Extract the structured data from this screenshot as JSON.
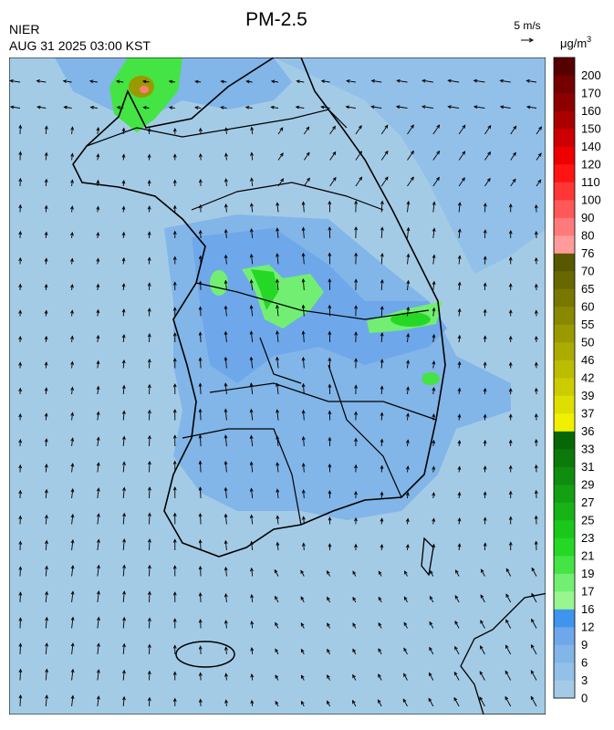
{
  "header": {
    "title": "PM-2.5",
    "source": "NIER",
    "datetime": "AUG 31 2025 03:00 KST",
    "wind_scale": "5 m/s",
    "unit": {
      "base": "μg/m",
      "sup": "3"
    }
  },
  "colorbar": {
    "labels": [
      0,
      3,
      6,
      9,
      12,
      16,
      17,
      19,
      21,
      23,
      25,
      27,
      29,
      31,
      33,
      36,
      37,
      39,
      42,
      46,
      50,
      55,
      60,
      65,
      70,
      76,
      80,
      90,
      100,
      110,
      120,
      140,
      150,
      160,
      170,
      200
    ],
    "colors": [
      "#a4cbe6",
      "#93c0e8",
      "#82b5e8",
      "#6ea8ea",
      "#3f95ee",
      "#98f590",
      "#72ef72",
      "#44e444",
      "#25d825",
      "#1cc71c",
      "#17b317",
      "#13a013",
      "#0f8d0f",
      "#0b7a0b",
      "#076707",
      "#f0f000",
      "#dede00",
      "#cccc00",
      "#bcbc00",
      "#abab00",
      "#9a9a00",
      "#898900",
      "#787800",
      "#686800",
      "#585800",
      "#ff9b9b",
      "#ff7a7a",
      "#ff5858",
      "#ff3636",
      "#ff1414",
      "#ee0000",
      "#cc0000",
      "#aa0000",
      "#8c0000",
      "#740000",
      "#560000"
    ]
  }
}
